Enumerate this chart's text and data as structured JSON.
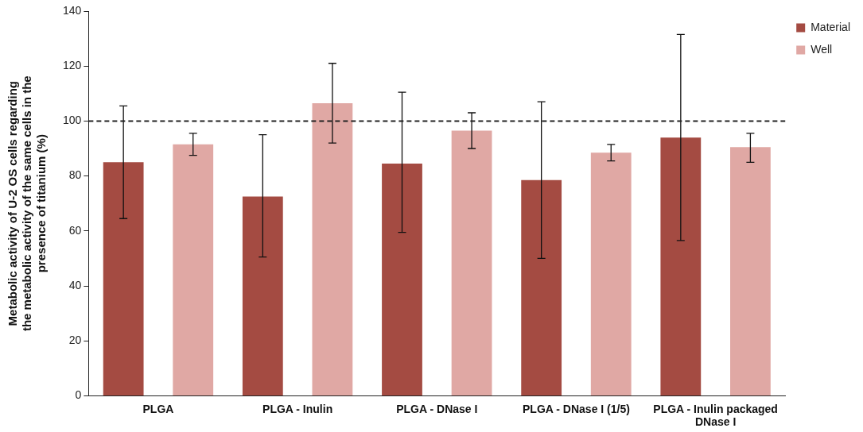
{
  "chart_data": {
    "type": "bar",
    "ylabel": "Metabolic activity of U-2 OS cells regarding the metabolic activity of the same cells in the presence of titanium (%)",
    "categories": [
      "PLGA",
      "PLGA - Inulin",
      "PLGA - DNase I",
      "PLGA - DNase I (1/5)",
      "PLGA - Inulin packaged DNase I"
    ],
    "series": [
      {
        "name": "Material",
        "color": "#a44b42",
        "values": [
          85,
          72.5,
          84.5,
          78.5,
          94
        ],
        "errors": [
          [
            64.5,
            105.5
          ],
          [
            50.5,
            95
          ],
          [
            59.5,
            110.5
          ],
          [
            50,
            107
          ],
          [
            56.5,
            131.5
          ]
        ]
      },
      {
        "name": "Well",
        "color": "#e0a8a4",
        "values": [
          91.5,
          106.5,
          96.5,
          88.5,
          90.5
        ],
        "errors": [
          [
            87.5,
            95.5
          ],
          [
            92,
            121
          ],
          [
            90,
            103
          ],
          [
            85.5,
            91.5
          ],
          [
            85,
            95.5
          ]
        ]
      }
    ],
    "ylim": [
      0,
      140
    ],
    "yticks": [
      0,
      20,
      40,
      60,
      80,
      100,
      120,
      140
    ],
    "ref_lines": [
      {
        "axis": "y",
        "value": 100,
        "line_style": "dashed"
      }
    ],
    "legend": "top right",
    "grid": false
  }
}
